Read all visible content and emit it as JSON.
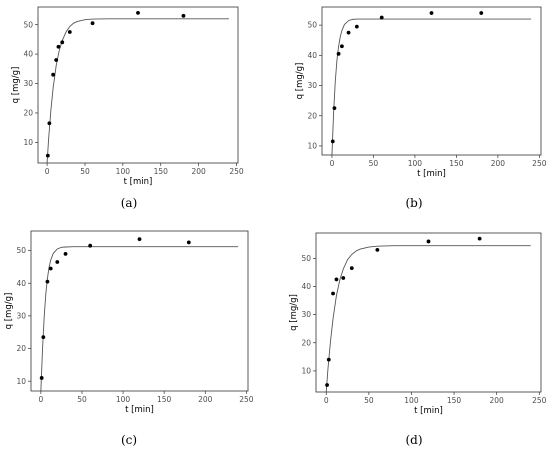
{
  "figure": {
    "captions": [
      "(a)",
      "(b)",
      "(c)",
      "(d)"
    ]
  },
  "chart_data": [
    {
      "type": "scatter",
      "title": "",
      "xlabel": "t [min]",
      "ylabel": "q [mg/g]",
      "xlim": [
        -12,
        252
      ],
      "ylim": [
        3,
        56
      ],
      "xticks": [
        0,
        50,
        100,
        150,
        200,
        250
      ],
      "yticks": [
        10,
        20,
        30,
        40,
        50
      ],
      "grid": false,
      "series": [
        {
          "type": "scatter",
          "x": [
            1,
            3,
            8,
            12,
            15,
            20,
            30,
            60,
            120,
            180
          ],
          "y": [
            5.5,
            16.5,
            33,
            38,
            42.5,
            44,
            47.5,
            50.5,
            54,
            53
          ]
        },
        {
          "type": "line",
          "x": [
            0,
            2,
            5,
            8,
            12,
            16,
            20,
            25,
            30,
            35,
            40,
            50,
            60,
            80,
            100,
            150,
            200,
            240
          ],
          "y": [
            3,
            11.2,
            20.9,
            28.6,
            36.1,
            41.2,
            44.6,
            47.5,
            49.4,
            50.5,
            51.1,
            51.7,
            51.9,
            52,
            52,
            52,
            52,
            52
          ]
        }
      ]
    },
    {
      "type": "scatter",
      "title": "",
      "xlabel": "t [min]",
      "ylabel": "q [mg/g]",
      "xlim": [
        -12,
        252
      ],
      "ylim": [
        7,
        56
      ],
      "xticks": [
        0,
        50,
        100,
        150,
        200,
        250
      ],
      "yticks": [
        10,
        20,
        30,
        40,
        50
      ],
      "grid": false,
      "series": [
        {
          "type": "scatter",
          "x": [
            1,
            3,
            8,
            12,
            20,
            30,
            60,
            120,
            180
          ],
          "y": [
            11.5,
            22.5,
            40.5,
            43,
            47.5,
            49.5,
            52.5,
            54,
            54
          ]
        },
        {
          "type": "line",
          "x": [
            0,
            2,
            4,
            6,
            8,
            10,
            12,
            15,
            20,
            25,
            30,
            40,
            50,
            60,
            80,
            100,
            150,
            200,
            240
          ],
          "y": [
            7,
            21.1,
            31.3,
            38.4,
            43,
            46.1,
            48.2,
            50.2,
            51.5,
            51.9,
            52,
            52,
            52,
            52,
            52,
            52,
            52,
            52,
            52
          ]
        }
      ]
    },
    {
      "type": "scatter",
      "title": "",
      "xlabel": "t [min]",
      "ylabel": "q [mg/g]",
      "xlim": [
        -12,
        252
      ],
      "ylim": [
        7,
        56
      ],
      "xticks": [
        0,
        50,
        100,
        150,
        200,
        250
      ],
      "yticks": [
        10,
        20,
        30,
        40,
        50
      ],
      "grid": false,
      "series": [
        {
          "type": "scatter",
          "x": [
            1,
            3,
            8,
            12,
            20,
            30,
            60,
            120,
            180
          ],
          "y": [
            11,
            23.5,
            40.5,
            44.5,
            46.5,
            49,
            51.5,
            53.5,
            52.5
          ]
        },
        {
          "type": "line",
          "x": [
            0,
            2,
            4,
            6,
            8,
            10,
            12,
            15,
            20,
            25,
            30,
            40,
            50,
            60,
            80,
            100,
            150,
            200,
            240
          ],
          "y": [
            7,
            19.7,
            29.5,
            36.7,
            41.5,
            44.9,
            47.1,
            49.1,
            50.5,
            51,
            51.1,
            51.2,
            51.2,
            51.2,
            51.2,
            51.2,
            51.2,
            51.2,
            51.2
          ]
        }
      ]
    },
    {
      "type": "scatter",
      "title": "",
      "xlabel": "t [min]",
      "ylabel": "q [mg/g]",
      "xlim": [
        -12,
        252
      ],
      "ylim": [
        2.5,
        59
      ],
      "xticks": [
        0,
        50,
        100,
        150,
        200,
        250
      ],
      "yticks": [
        10,
        20,
        30,
        40,
        50
      ],
      "grid": false,
      "series": [
        {
          "type": "scatter",
          "x": [
            1,
            3,
            8,
            12,
            20,
            30,
            60,
            120,
            180
          ],
          "y": [
            5,
            14,
            37.5,
            42.5,
            43,
            46.5,
            53,
            56,
            57
          ]
        },
        {
          "type": "line",
          "x": [
            0,
            2,
            5,
            8,
            12,
            16,
            20,
            25,
            30,
            35,
            40,
            50,
            60,
            80,
            100,
            150,
            200,
            240
          ],
          "y": [
            2.5,
            10.6,
            20.5,
            28.6,
            36.8,
            42.4,
            46.2,
            49.5,
            51.4,
            52.6,
            53.3,
            54,
            54.3,
            54.5,
            54.5,
            54.5,
            54.5,
            54.5
          ]
        }
      ]
    }
  ]
}
